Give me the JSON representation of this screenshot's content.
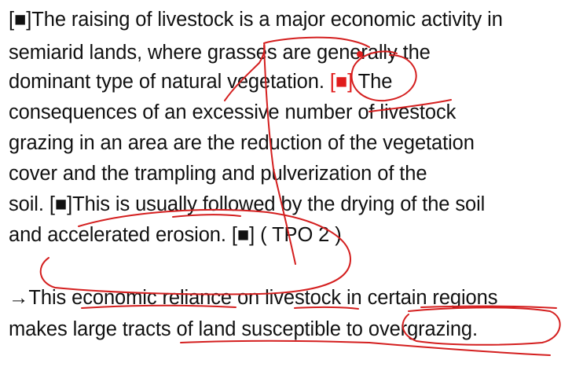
{
  "passage": {
    "l1": {
      "sq": "[■]",
      "text": "The raising of livestock is a major economic activity in"
    },
    "l2": {
      "text": "semiarid lands, where grasses are generally the"
    },
    "l3": {
      "text_a": "dominant type of natural vegetation.",
      "sq": "[■]",
      "text_b": "The"
    },
    "l4": {
      "text": "consequences of an excessive number of livestock"
    },
    "l5": {
      "text": "grazing in an area are the reduction of the vegetation"
    },
    "l6": {
      "text": "cover and the trampling and pulverization of the"
    },
    "l7": {
      "text_a": "soil.",
      "sq": "[■]",
      "text_b": "This is usually followed by the drying of the soil"
    },
    "l8": {
      "text_a": "and accelerated erosion.",
      "sq": "[■]",
      "text_b": "( TPO 2 )"
    }
  },
  "insert_sentence": {
    "arrow": "→",
    "l1": "This economic reliance on livestock in certain regions",
    "l2": "makes large tracts of land susceptible to overgrazing."
  },
  "colors": {
    "text": "#111111",
    "square_highlight": "#e01c1c",
    "annotation_ink": "#d41f1f"
  }
}
